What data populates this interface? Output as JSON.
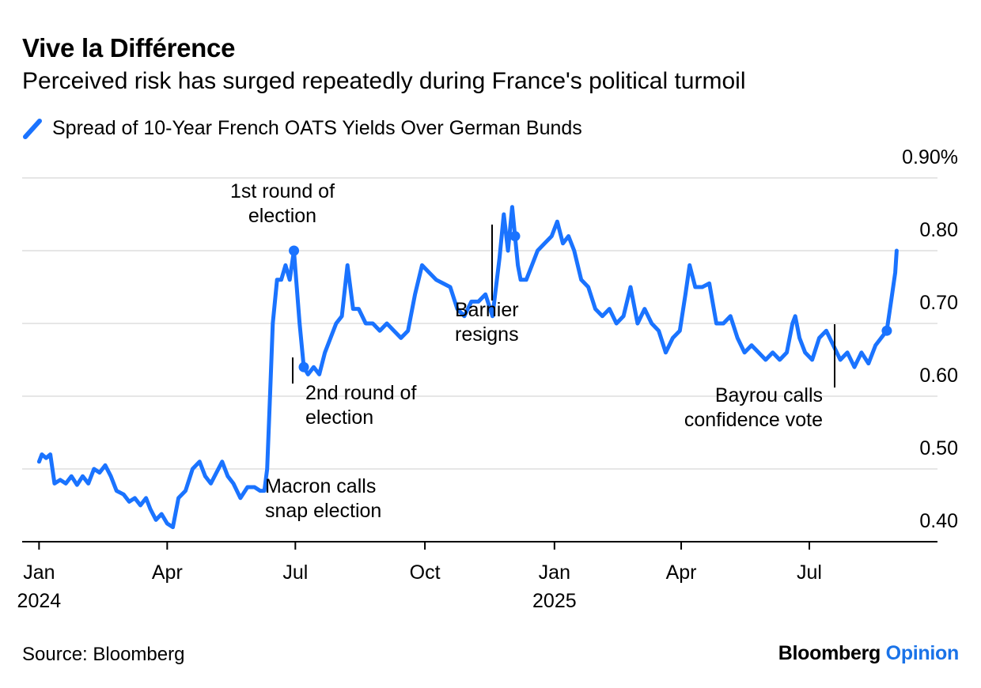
{
  "title": "Vive la Différence",
  "subtitle": "Perceived risk has surged repeatedly during France's political turmoil",
  "legend_label": "Spread of 10-Year French OATS Yields Over German Bunds",
  "source": "Source: Bloomberg",
  "brand": {
    "name": "Bloomberg",
    "section": "Opinion"
  },
  "colors": {
    "series": "#1a73ff",
    "grid": "#e6e6e6",
    "axis": "#000000",
    "brand_accent": "#1a73e8"
  },
  "chart_data": {
    "type": "line",
    "title": "Vive la Différence",
    "subtitle": "Perceived risk has surged repeatedly during France's political turmoil",
    "xlabel": "",
    "ylabel": "",
    "ylim": [
      0.4,
      0.9
    ],
    "xlim": [
      "2023-12-20",
      "2025-09-30"
    ],
    "y_ticks": [
      0.4,
      0.5,
      0.6,
      0.7,
      0.8,
      0.9
    ],
    "y_tick_labels": [
      "0.40",
      "0.50",
      "0.60",
      "0.70",
      "0.80",
      "0.90%"
    ],
    "x_ticks": [
      {
        "date": "2024-01-01",
        "label": "Jan",
        "year": "2024"
      },
      {
        "date": "2024-04-01",
        "label": "Apr",
        "year": ""
      },
      {
        "date": "2024-07-01",
        "label": "Jul",
        "year": ""
      },
      {
        "date": "2024-10-01",
        "label": "Oct",
        "year": ""
      },
      {
        "date": "2025-01-01",
        "label": "Jan",
        "year": "2025"
      },
      {
        "date": "2025-04-01",
        "label": "Apr",
        "year": ""
      },
      {
        "date": "2025-07-01",
        "label": "Jul",
        "year": ""
      }
    ],
    "grid": true,
    "legend_position": "top-left",
    "series": [
      {
        "name": "Spread of 10-Year French OATS Yields Over German Bunds",
        "points": [
          [
            "2024-01-01",
            0.51
          ],
          [
            "2024-01-03",
            0.52
          ],
          [
            "2024-01-06",
            0.515
          ],
          [
            "2024-01-09",
            0.52
          ],
          [
            "2024-01-12",
            0.48
          ],
          [
            "2024-01-16",
            0.485
          ],
          [
            "2024-01-20",
            0.48
          ],
          [
            "2024-01-24",
            0.49
          ],
          [
            "2024-01-28",
            0.478
          ],
          [
            "2024-02-01",
            0.49
          ],
          [
            "2024-02-05",
            0.48
          ],
          [
            "2024-02-09",
            0.5
          ],
          [
            "2024-02-13",
            0.495
          ],
          [
            "2024-02-17",
            0.505
          ],
          [
            "2024-02-21",
            0.49
          ],
          [
            "2024-02-25",
            0.47
          ],
          [
            "2024-03-01",
            0.465
          ],
          [
            "2024-03-05",
            0.455
          ],
          [
            "2024-03-09",
            0.46
          ],
          [
            "2024-03-13",
            0.45
          ],
          [
            "2024-03-17",
            0.46
          ],
          [
            "2024-03-20",
            0.445
          ],
          [
            "2024-03-24",
            0.43
          ],
          [
            "2024-03-28",
            0.438
          ],
          [
            "2024-04-01",
            0.425
          ],
          [
            "2024-04-05",
            0.42
          ],
          [
            "2024-04-09",
            0.46
          ],
          [
            "2024-04-14",
            0.47
          ],
          [
            "2024-04-19",
            0.5
          ],
          [
            "2024-04-24",
            0.51
          ],
          [
            "2024-04-28",
            0.49
          ],
          [
            "2024-05-02",
            0.48
          ],
          [
            "2024-05-06",
            0.495
          ],
          [
            "2024-05-10",
            0.51
          ],
          [
            "2024-05-14",
            0.49
          ],
          [
            "2024-05-18",
            0.48
          ],
          [
            "2024-05-23",
            0.46
          ],
          [
            "2024-05-28",
            0.475
          ],
          [
            "2024-06-02",
            0.475
          ],
          [
            "2024-06-06",
            0.47
          ],
          [
            "2024-06-09",
            0.47
          ],
          [
            "2024-06-11",
            0.5
          ],
          [
            "2024-06-13",
            0.6
          ],
          [
            "2024-06-15",
            0.7
          ],
          [
            "2024-06-18",
            0.76
          ],
          [
            "2024-06-21",
            0.76
          ],
          [
            "2024-06-24",
            0.78
          ],
          [
            "2024-06-27",
            0.76
          ],
          [
            "2024-06-30",
            0.8
          ],
          [
            "2024-07-02",
            0.75
          ],
          [
            "2024-07-04",
            0.7
          ],
          [
            "2024-07-07",
            0.64
          ],
          [
            "2024-07-10",
            0.63
          ],
          [
            "2024-07-14",
            0.64
          ],
          [
            "2024-07-18",
            0.63
          ],
          [
            "2024-07-22",
            0.66
          ],
          [
            "2024-07-26",
            0.68
          ],
          [
            "2024-07-30",
            0.7
          ],
          [
            "2024-08-03",
            0.71
          ],
          [
            "2024-08-07",
            0.78
          ],
          [
            "2024-08-11",
            0.72
          ],
          [
            "2024-08-15",
            0.72
          ],
          [
            "2024-08-20",
            0.7
          ],
          [
            "2024-08-25",
            0.7
          ],
          [
            "2024-08-30",
            0.69
          ],
          [
            "2024-09-04",
            0.7
          ],
          [
            "2024-09-09",
            0.69
          ],
          [
            "2024-09-14",
            0.68
          ],
          [
            "2024-09-19",
            0.69
          ],
          [
            "2024-09-24",
            0.74
          ],
          [
            "2024-09-29",
            0.78
          ],
          [
            "2024-10-04",
            0.77
          ],
          [
            "2024-10-09",
            0.76
          ],
          [
            "2024-10-14",
            0.755
          ],
          [
            "2024-10-19",
            0.75
          ],
          [
            "2024-10-24",
            0.72
          ],
          [
            "2024-10-29",
            0.71
          ],
          [
            "2024-11-03",
            0.73
          ],
          [
            "2024-11-08",
            0.73
          ],
          [
            "2024-11-13",
            0.74
          ],
          [
            "2024-11-18",
            0.71
          ],
          [
            "2024-11-23",
            0.79
          ],
          [
            "2024-11-26",
            0.85
          ],
          [
            "2024-11-29",
            0.8
          ],
          [
            "2024-12-02",
            0.86
          ],
          [
            "2024-12-04",
            0.82
          ],
          [
            "2024-12-06",
            0.78
          ],
          [
            "2024-12-08",
            0.76
          ],
          [
            "2024-12-12",
            0.76
          ],
          [
            "2024-12-16",
            0.78
          ],
          [
            "2024-12-20",
            0.8
          ],
          [
            "2024-12-25",
            0.81
          ],
          [
            "2024-12-30",
            0.82
          ],
          [
            "2025-01-03",
            0.84
          ],
          [
            "2025-01-07",
            0.81
          ],
          [
            "2025-01-11",
            0.82
          ],
          [
            "2025-01-15",
            0.8
          ],
          [
            "2025-01-20",
            0.76
          ],
          [
            "2025-01-25",
            0.75
          ],
          [
            "2025-01-30",
            0.72
          ],
          [
            "2025-02-04",
            0.71
          ],
          [
            "2025-02-09",
            0.72
          ],
          [
            "2025-02-14",
            0.7
          ],
          [
            "2025-02-19",
            0.71
          ],
          [
            "2025-02-24",
            0.75
          ],
          [
            "2025-03-01",
            0.7
          ],
          [
            "2025-03-06",
            0.72
          ],
          [
            "2025-03-11",
            0.7
          ],
          [
            "2025-03-16",
            0.69
          ],
          [
            "2025-03-21",
            0.66
          ],
          [
            "2025-03-26",
            0.68
          ],
          [
            "2025-03-31",
            0.69
          ],
          [
            "2025-04-04",
            0.74
          ],
          [
            "2025-04-07",
            0.78
          ],
          [
            "2025-04-11",
            0.75
          ],
          [
            "2025-04-16",
            0.75
          ],
          [
            "2025-04-21",
            0.755
          ],
          [
            "2025-04-26",
            0.7
          ],
          [
            "2025-05-01",
            0.7
          ],
          [
            "2025-05-06",
            0.71
          ],
          [
            "2025-05-11",
            0.68
          ],
          [
            "2025-05-16",
            0.66
          ],
          [
            "2025-05-21",
            0.67
          ],
          [
            "2025-05-26",
            0.66
          ],
          [
            "2025-05-31",
            0.65
          ],
          [
            "2025-06-05",
            0.66
          ],
          [
            "2025-06-10",
            0.65
          ],
          [
            "2025-06-15",
            0.66
          ],
          [
            "2025-06-19",
            0.7
          ],
          [
            "2025-06-21",
            0.71
          ],
          [
            "2025-06-24",
            0.68
          ],
          [
            "2025-06-28",
            0.66
          ],
          [
            "2025-07-03",
            0.65
          ],
          [
            "2025-07-08",
            0.68
          ],
          [
            "2025-07-13",
            0.69
          ],
          [
            "2025-07-18",
            0.67
          ],
          [
            "2025-07-23",
            0.65
          ],
          [
            "2025-07-28",
            0.66
          ],
          [
            "2025-08-02",
            0.64
          ],
          [
            "2025-08-07",
            0.66
          ],
          [
            "2025-08-12",
            0.645
          ],
          [
            "2025-08-17",
            0.67
          ],
          [
            "2025-08-21",
            0.68
          ],
          [
            "2025-08-25",
            0.69
          ],
          [
            "2025-08-28",
            0.73
          ],
          [
            "2025-08-31",
            0.77
          ],
          [
            "2025-09-01",
            0.8
          ]
        ]
      }
    ],
    "annotations": [
      {
        "text": [
          "Macron calls",
          "snap election"
        ],
        "date": "2024-06-09",
        "value": 0.47,
        "marker": false
      },
      {
        "text": [
          "1st round of",
          "election"
        ],
        "date": "2024-06-30",
        "value": 0.8,
        "marker": true
      },
      {
        "text": [
          "2nd round of",
          "election"
        ],
        "date": "2024-07-07",
        "value": 0.64,
        "marker": true
      },
      {
        "text": [
          "Barnier",
          "resigns"
        ],
        "date": "2024-12-04",
        "value": 0.82,
        "marker": true
      },
      {
        "text": [
          "Bayrou calls",
          "confidence vote"
        ],
        "date": "2025-08-25",
        "value": 0.69,
        "marker": true
      }
    ]
  }
}
